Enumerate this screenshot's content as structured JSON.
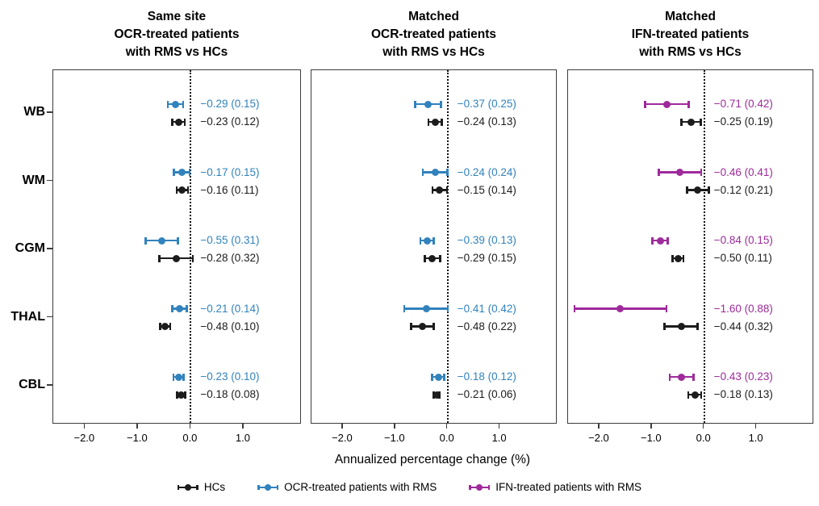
{
  "chart_data": {
    "type": "forest",
    "xlabel": "Annualized percentage change (%)",
    "categories": [
      "WB",
      "WM",
      "CGM",
      "THAL",
      "CBL"
    ],
    "xticks": [
      -2.0,
      -1.0,
      0.0,
      1.0
    ],
    "xtick_labels": [
      "−2.0",
      "−1.0",
      "0.0",
      "1.0"
    ],
    "xlim": [
      -2.6,
      2.1
    ],
    "zero_reference_line": 0.0,
    "value_format": "mean (SE)",
    "series_colors": {
      "HC": "#1c1c1c",
      "OCR": "#3182bd",
      "IFN": "#9e2a9b"
    },
    "panels": [
      {
        "title_lines": [
          "Same site",
          "OCR-treated patients",
          "with RMS vs HCs"
        ],
        "treated_series": "OCR",
        "rows": [
          {
            "region": "WB",
            "treated_mean": -0.29,
            "treated_se": 0.15,
            "treated_label": "−0.29 (0.15)",
            "hc_mean": -0.23,
            "hc_se": 0.12,
            "hc_label": "−0.23 (0.12)"
          },
          {
            "region": "WM",
            "treated_mean": -0.17,
            "treated_se": 0.15,
            "treated_label": "−0.17 (0.15)",
            "hc_mean": -0.16,
            "hc_se": 0.11,
            "hc_label": "−0.16 (0.11)"
          },
          {
            "region": "CGM",
            "treated_mean": -0.55,
            "treated_se": 0.31,
            "treated_label": "−0.55 (0.31)",
            "hc_mean": -0.28,
            "hc_se": 0.32,
            "hc_label": "−0.28 (0.32)"
          },
          {
            "region": "THAL",
            "treated_mean": -0.21,
            "treated_se": 0.14,
            "treated_label": "−0.21 (0.14)",
            "hc_mean": -0.48,
            "hc_se": 0.1,
            "hc_label": "−0.48 (0.10)"
          },
          {
            "region": "CBL",
            "treated_mean": -0.23,
            "treated_se": 0.1,
            "treated_label": "−0.23 (0.10)",
            "hc_mean": -0.18,
            "hc_se": 0.08,
            "hc_label": "−0.18 (0.08)"
          }
        ]
      },
      {
        "title_lines": [
          "Matched",
          "OCR-treated patients",
          "with RMS vs HCs"
        ],
        "treated_series": "OCR",
        "rows": [
          {
            "region": "WB",
            "treated_mean": -0.37,
            "treated_se": 0.25,
            "treated_label": "−0.37 (0.25)",
            "hc_mean": -0.24,
            "hc_se": 0.13,
            "hc_label": "−0.24 (0.13)"
          },
          {
            "region": "WM",
            "treated_mean": -0.24,
            "treated_se": 0.24,
            "treated_label": "−0.24 (0.24)",
            "hc_mean": -0.15,
            "hc_se": 0.14,
            "hc_label": "−0.15 (0.14)"
          },
          {
            "region": "CGM",
            "treated_mean": -0.39,
            "treated_se": 0.13,
            "treated_label": "−0.39 (0.13)",
            "hc_mean": -0.29,
            "hc_se": 0.15,
            "hc_label": "−0.29 (0.15)"
          },
          {
            "region": "THAL",
            "treated_mean": -0.41,
            "treated_se": 0.42,
            "treated_label": "−0.41 (0.42)",
            "hc_mean": -0.48,
            "hc_se": 0.22,
            "hc_label": "−0.48 (0.22)"
          },
          {
            "region": "CBL",
            "treated_mean": -0.18,
            "treated_se": 0.12,
            "treated_label": "−0.18 (0.12)",
            "hc_mean": -0.21,
            "hc_se": 0.06,
            "hc_label": "−0.21 (0.06)"
          }
        ]
      },
      {
        "title_lines": [
          "Matched",
          "IFN-treated patients",
          "with RMS vs HCs"
        ],
        "treated_series": "IFN",
        "rows": [
          {
            "region": "WB",
            "treated_mean": -0.71,
            "treated_se": 0.42,
            "treated_label": "−0.71 (0.42)",
            "hc_mean": -0.25,
            "hc_se": 0.19,
            "hc_label": "−0.25 (0.19)"
          },
          {
            "region": "WM",
            "treated_mean": -0.46,
            "treated_se": 0.41,
            "treated_label": "−0.46 (0.41)",
            "hc_mean": -0.12,
            "hc_se": 0.21,
            "hc_label": "−0.12 (0.21)"
          },
          {
            "region": "CGM",
            "treated_mean": -0.84,
            "treated_se": 0.15,
            "treated_label": "−0.84 (0.15)",
            "hc_mean": -0.5,
            "hc_se": 0.11,
            "hc_label": "−0.50 (0.11)"
          },
          {
            "region": "THAL",
            "treated_mean": -1.6,
            "treated_se": 0.88,
            "treated_label": "−1.60 (0.88)",
            "hc_mean": -0.44,
            "hc_se": 0.32,
            "hc_label": "−0.44 (0.32)"
          },
          {
            "region": "CBL",
            "treated_mean": -0.43,
            "treated_se": 0.23,
            "treated_label": "−0.43 (0.23)",
            "hc_mean": -0.18,
            "hc_se": 0.13,
            "hc_label": "−0.18 (0.13)"
          }
        ]
      }
    ],
    "legend": [
      {
        "label": "HCs",
        "series": "HC",
        "color": "#1c1c1c"
      },
      {
        "label": "OCR-treated patients with RMS",
        "series": "OCR",
        "color": "#3182bd"
      },
      {
        "label": "IFN-treated patients with RMS",
        "series": "IFN",
        "color": "#9e2a9b"
      }
    ]
  }
}
